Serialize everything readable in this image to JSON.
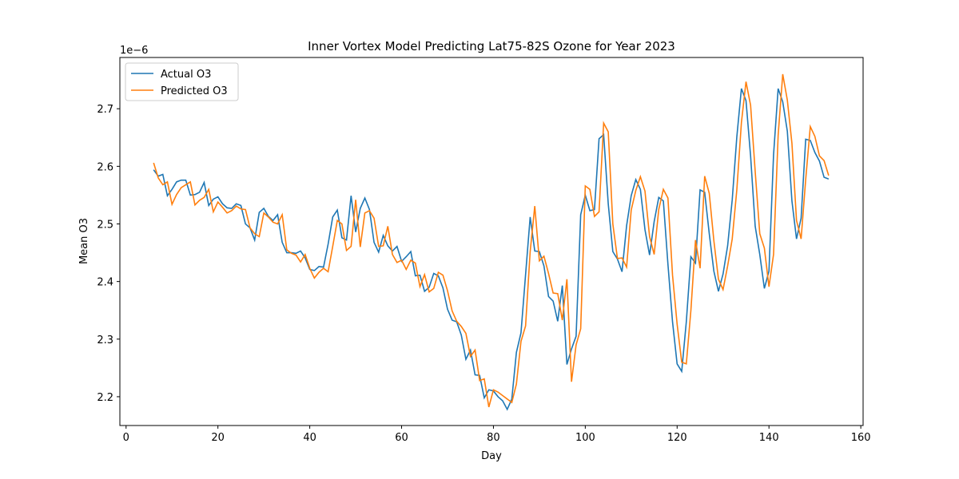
{
  "chart_data": {
    "type": "line",
    "title": "Inner Vortex Model Predicting Lat75-82S Ozone for Year 2023",
    "x_label": "Day",
    "y_label": "Mean O3",
    "y_offset_label": "1e−6",
    "legend": "upper left",
    "grid": false,
    "xlim": [
      -1.35,
      160.5
    ],
    "ylim": [
      2.15,
      2.789
    ],
    "xticks": [
      0,
      20,
      40,
      60,
      80,
      100,
      120,
      140,
      160
    ],
    "yticks": [
      2.2,
      2.3,
      2.4,
      2.5,
      2.6,
      2.7
    ],
    "x": [
      6,
      7,
      8,
      9,
      10,
      11,
      12,
      13,
      14,
      15,
      16,
      17,
      18,
      19,
      20,
      21,
      22,
      23,
      24,
      25,
      26,
      27,
      28,
      29,
      30,
      31,
      32,
      33,
      34,
      35,
      36,
      37,
      38,
      39,
      40,
      41,
      42,
      43,
      44,
      45,
      46,
      47,
      48,
      49,
      50,
      51,
      52,
      53,
      54,
      55,
      56,
      57,
      58,
      59,
      60,
      61,
      62,
      63,
      64,
      65,
      66,
      67,
      68,
      69,
      70,
      71,
      72,
      73,
      74,
      75,
      76,
      77,
      78,
      79,
      80,
      81,
      82,
      83,
      84,
      85,
      86,
      87,
      88,
      89,
      90,
      91,
      92,
      93,
      94,
      95,
      96,
      97,
      98,
      99,
      100,
      101,
      102,
      103,
      104,
      105,
      106,
      107,
      108,
      109,
      110,
      111,
      112,
      113,
      114,
      115,
      116,
      117,
      118,
      119,
      120,
      121,
      122,
      123,
      124,
      125,
      126,
      127,
      128,
      129,
      130,
      131,
      132,
      133,
      134,
      135,
      136,
      137,
      138,
      139,
      140,
      141,
      142,
      143,
      144,
      145,
      146,
      147,
      148,
      149,
      150,
      151,
      152,
      153
    ],
    "series": [
      {
        "name": "Actual O3",
        "color": "#1f77b4",
        "values": [
          2.594,
          2.583,
          2.586,
          2.549,
          2.56,
          2.573,
          2.576,
          2.576,
          2.55,
          2.551,
          2.555,
          2.572,
          2.532,
          2.543,
          2.547,
          2.535,
          2.528,
          2.527,
          2.535,
          2.532,
          2.5,
          2.493,
          2.472,
          2.52,
          2.527,
          2.513,
          2.506,
          2.516,
          2.468,
          2.45,
          2.45,
          2.449,
          2.453,
          2.441,
          2.421,
          2.419,
          2.426,
          2.425,
          2.465,
          2.512,
          2.524,
          2.476,
          2.472,
          2.549,
          2.486,
          2.527,
          2.545,
          2.525,
          2.468,
          2.451,
          2.48,
          2.462,
          2.453,
          2.461,
          2.435,
          2.443,
          2.452,
          2.41,
          2.411,
          2.383,
          2.39,
          2.414,
          2.41,
          2.389,
          2.352,
          2.333,
          2.33,
          2.307,
          2.265,
          2.281,
          2.238,
          2.237,
          2.198,
          2.212,
          2.21,
          2.2,
          2.193,
          2.178,
          2.196,
          2.277,
          2.311,
          2.412,
          2.512,
          2.453,
          2.452,
          2.427,
          2.374,
          2.366,
          2.331,
          2.393,
          2.256,
          2.283,
          2.305,
          2.516,
          2.55,
          2.523,
          2.525,
          2.648,
          2.655,
          2.535,
          2.452,
          2.439,
          2.417,
          2.497,
          2.549,
          2.577,
          2.56,
          2.49,
          2.446,
          2.504,
          2.546,
          2.54,
          2.43,
          2.33,
          2.257,
          2.244,
          2.33,
          2.443,
          2.432,
          2.559,
          2.555,
          2.483,
          2.418,
          2.383,
          2.413,
          2.462,
          2.542,
          2.651,
          2.735,
          2.714,
          2.618,
          2.496,
          2.447,
          2.388,
          2.418,
          2.62,
          2.735,
          2.712,
          2.661,
          2.54,
          2.474,
          2.51,
          2.647,
          2.645,
          2.624,
          2.609,
          2.581,
          2.578
        ]
      },
      {
        "name": "Predicted O3",
        "color": "#ff7f0e",
        "values": [
          2.606,
          2.58,
          2.568,
          2.573,
          2.534,
          2.551,
          2.563,
          2.568,
          2.573,
          2.533,
          2.541,
          2.546,
          2.56,
          2.521,
          2.538,
          2.529,
          2.519,
          2.523,
          2.531,
          2.526,
          2.525,
          2.493,
          2.483,
          2.478,
          2.519,
          2.512,
          2.503,
          2.5,
          2.516,
          2.455,
          2.449,
          2.446,
          2.434,
          2.447,
          2.423,
          2.406,
          2.416,
          2.423,
          2.417,
          2.461,
          2.506,
          2.5,
          2.454,
          2.461,
          2.542,
          2.46,
          2.519,
          2.523,
          2.51,
          2.461,
          2.462,
          2.496,
          2.447,
          2.433,
          2.437,
          2.421,
          2.437,
          2.432,
          2.391,
          2.412,
          2.382,
          2.388,
          2.416,
          2.411,
          2.384,
          2.349,
          2.331,
          2.322,
          2.31,
          2.27,
          2.281,
          2.228,
          2.231,
          2.182,
          2.212,
          2.208,
          2.202,
          2.196,
          2.19,
          2.222,
          2.296,
          2.323,
          2.452,
          2.531,
          2.436,
          2.444,
          2.414,
          2.38,
          2.379,
          2.333,
          2.404,
          2.226,
          2.29,
          2.318,
          2.566,
          2.56,
          2.513,
          2.521,
          2.675,
          2.66,
          2.5,
          2.44,
          2.441,
          2.425,
          2.524,
          2.558,
          2.582,
          2.557,
          2.478,
          2.447,
          2.525,
          2.56,
          2.545,
          2.411,
          2.326,
          2.26,
          2.257,
          2.35,
          2.472,
          2.423,
          2.583,
          2.553,
          2.471,
          2.404,
          2.386,
          2.427,
          2.474,
          2.559,
          2.676,
          2.747,
          2.706,
          2.591,
          2.483,
          2.458,
          2.391,
          2.447,
          2.654,
          2.76,
          2.715,
          2.64,
          2.506,
          2.474,
          2.577,
          2.669,
          2.652,
          2.618,
          2.61,
          2.584
        ]
      }
    ]
  }
}
